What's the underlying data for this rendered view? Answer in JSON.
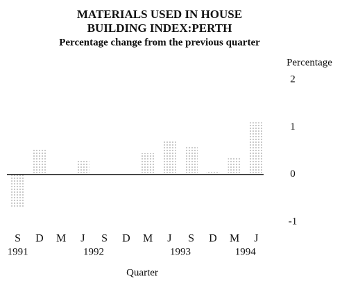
{
  "chart_data": {
    "type": "bar",
    "title_lines": [
      "MATERIALS USED IN HOUSE",
      "BUILDING INDEX:PERTH"
    ],
    "subtitle": "Percentage change from the previous quarter",
    "y_axis_label": "Percentage",
    "x_axis_label": "Quarter",
    "categories": [
      "S",
      "D",
      "M",
      "J",
      "S",
      "D",
      "M",
      "J",
      "S",
      "D",
      "M",
      "J"
    ],
    "years": [
      "1991",
      null,
      null,
      "1992",
      null,
      null,
      null,
      "1993",
      null,
      null,
      "1994",
      null
    ],
    "values": [
      -0.7,
      0.55,
      0.02,
      0.3,
      0,
      0,
      0.45,
      0.7,
      0.6,
      0.05,
      0.35,
      1.1
    ],
    "color": "#888888",
    "ylim": [
      -1,
      2
    ],
    "yticks": [
      2,
      1,
      0,
      -1
    ]
  }
}
